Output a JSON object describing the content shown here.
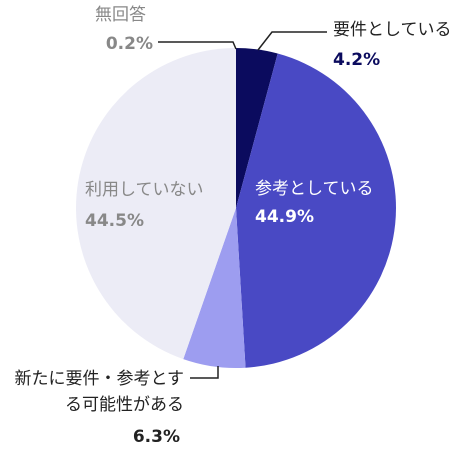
{
  "chart_data": {
    "type": "pie",
    "categories": [
      "要件としている",
      "参考としている",
      "新たに要件・参考とする可能性がある",
      "利用していない",
      "無回答"
    ],
    "values": [
      4.2,
      44.9,
      6.3,
      44.5,
      0.2
    ],
    "value_labels": [
      "4.2%",
      "44.9%",
      "6.3%",
      "44.5%",
      "0.2%"
    ],
    "colors": [
      "#0b0b5e",
      "#4949c4",
      "#9d9df0",
      "#ececf6",
      "#ececf6"
    ]
  }
}
